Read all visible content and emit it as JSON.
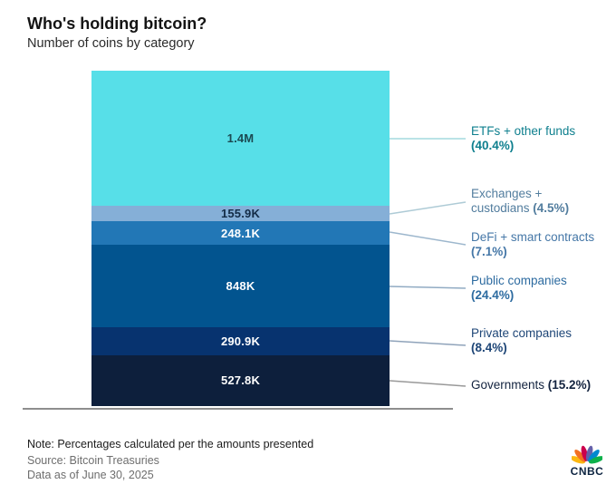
{
  "chart_data": {
    "type": "bar",
    "variant": "single-stacked-column",
    "title": "Who's holding bitcoin?",
    "subtitle": "Number of coins by category",
    "unit": "coins",
    "legend_position": "right-callouts",
    "grid": false,
    "segments": [
      {
        "category": "ETFs + other funds",
        "value_label": "1.4M",
        "percent": 40.4,
        "line1": "ETFs + other funds",
        "line2": "(40.4%)",
        "color": "#57dfe8",
        "value_text_color": "#1b4a52",
        "label_color": "#0e7f8e",
        "connector_color": "#a3dadf"
      },
      {
        "category": "Exchanges + custodians",
        "value_label": "155.9K",
        "percent": 4.5,
        "line1": "Exchanges +",
        "line2": "custodians (4.5%)",
        "color": "#85afd7",
        "value_text_color": "#132c47",
        "label_color": "#527d9e",
        "connector_color": "#aecbd6"
      },
      {
        "category": "DeFi + smart contracts",
        "value_label": "248.1K",
        "percent": 7.1,
        "line1": "DeFi + smart contracts",
        "line2": "(7.1%)",
        "color": "#2277b6",
        "value_text_color": "#ffffff",
        "label_color": "#4577a7",
        "connector_color": "#9db7cd"
      },
      {
        "category": "Public companies",
        "value_label": "848K",
        "percent": 24.4,
        "line1": "Public companies",
        "line2": "(24.4%)",
        "color": "#02548f",
        "value_text_color": "#ffffff",
        "label_color": "#2d6ba0",
        "connector_color": "#91abc3"
      },
      {
        "category": "Private companies",
        "value_label": "290.9K",
        "percent": 8.4,
        "line1": "Private companies",
        "line2": "(8.4%)",
        "color": "#07336f",
        "value_text_color": "#ffffff",
        "label_color": "#1e4677",
        "connector_color": "#8fa3ba"
      },
      {
        "category": "Governments",
        "value_label": "527.8K",
        "percent": 15.2,
        "line1": "Governments (15.2%)",
        "line2": null,
        "color": "#0d1f3c",
        "value_text_color": "#ffffff",
        "label_color": "#13233f",
        "connector_color": "#999999"
      }
    ]
  },
  "footer": {
    "note": "Note: Percentages calculated per the amounts presented",
    "source": "Source: Bitcoin Treasuries",
    "data_as_of": "Data as of June 30, 2025"
  },
  "branding": {
    "wordmark": "CNBC",
    "peacock_colors": [
      "#FCB711",
      "#F37021",
      "#CC004C",
      "#6460AA",
      "#0089D0",
      "#0DB14B"
    ]
  }
}
